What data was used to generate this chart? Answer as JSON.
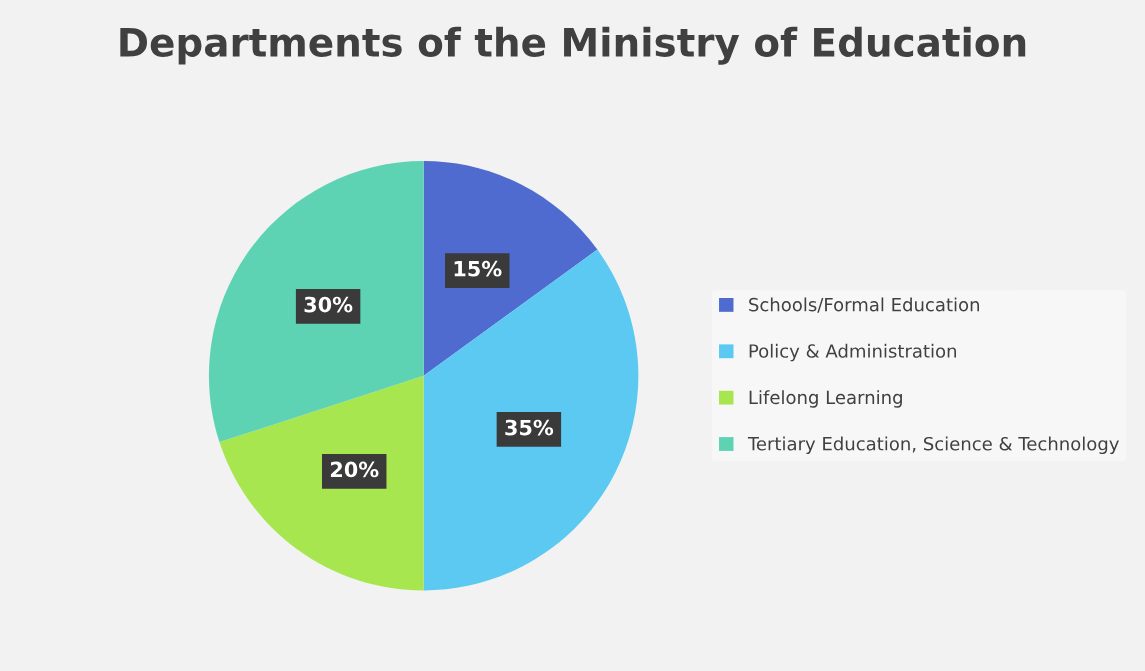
{
  "chart_data": {
    "type": "pie",
    "title": "Departments of the Ministry of Education",
    "categories": [
      "Schools/Formal Education",
      "Policy & Administration",
      "Lifelong Learning",
      "Tertiary Education, Science & Technology"
    ],
    "values": [
      15,
      35,
      20,
      30
    ],
    "colors": [
      "#4f6bcf",
      "#5bc9f2",
      "#a8e64f",
      "#5dd3b4"
    ],
    "value_labels": [
      "15%",
      "35%",
      "20%",
      "30%"
    ],
    "legend": "right"
  }
}
